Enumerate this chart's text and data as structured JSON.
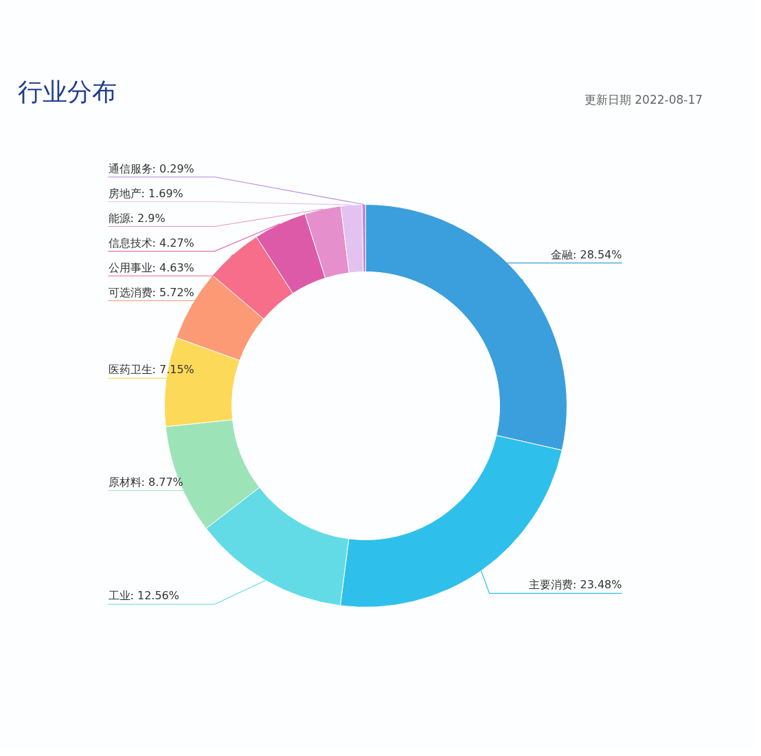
{
  "chart_data": {
    "type": "donut",
    "title": "行业分布",
    "annotations": [
      "更新日期  2022-08-17"
    ],
    "categories": [
      "金融",
      "主要消费",
      "工业",
      "原材料",
      "医药卫生",
      "可选消费",
      "公用事业",
      "信息技术",
      "能源",
      "房地产",
      "通信服务"
    ],
    "values": [
      28.54,
      23.48,
      12.56,
      8.77,
      7.15,
      5.72,
      4.63,
      4.27,
      2.9,
      1.69,
      0.29
    ],
    "value_labels": [
      "28.54%",
      "23.48%",
      "12.56%",
      "8.77%",
      "7.15%",
      "5.72%",
      "4.63%",
      "4.27%",
      "2.9%",
      "1.69%",
      "0.29%"
    ],
    "colors": [
      "#3a9fdc",
      "#2ec0ea",
      "#62dbe6",
      "#9de3b8",
      "#fdd95a",
      "#fd9a76",
      "#f66e8a",
      "#dd5aa8",
      "#e590cc",
      "#e3c2f0",
      "#b98be0"
    ]
  }
}
